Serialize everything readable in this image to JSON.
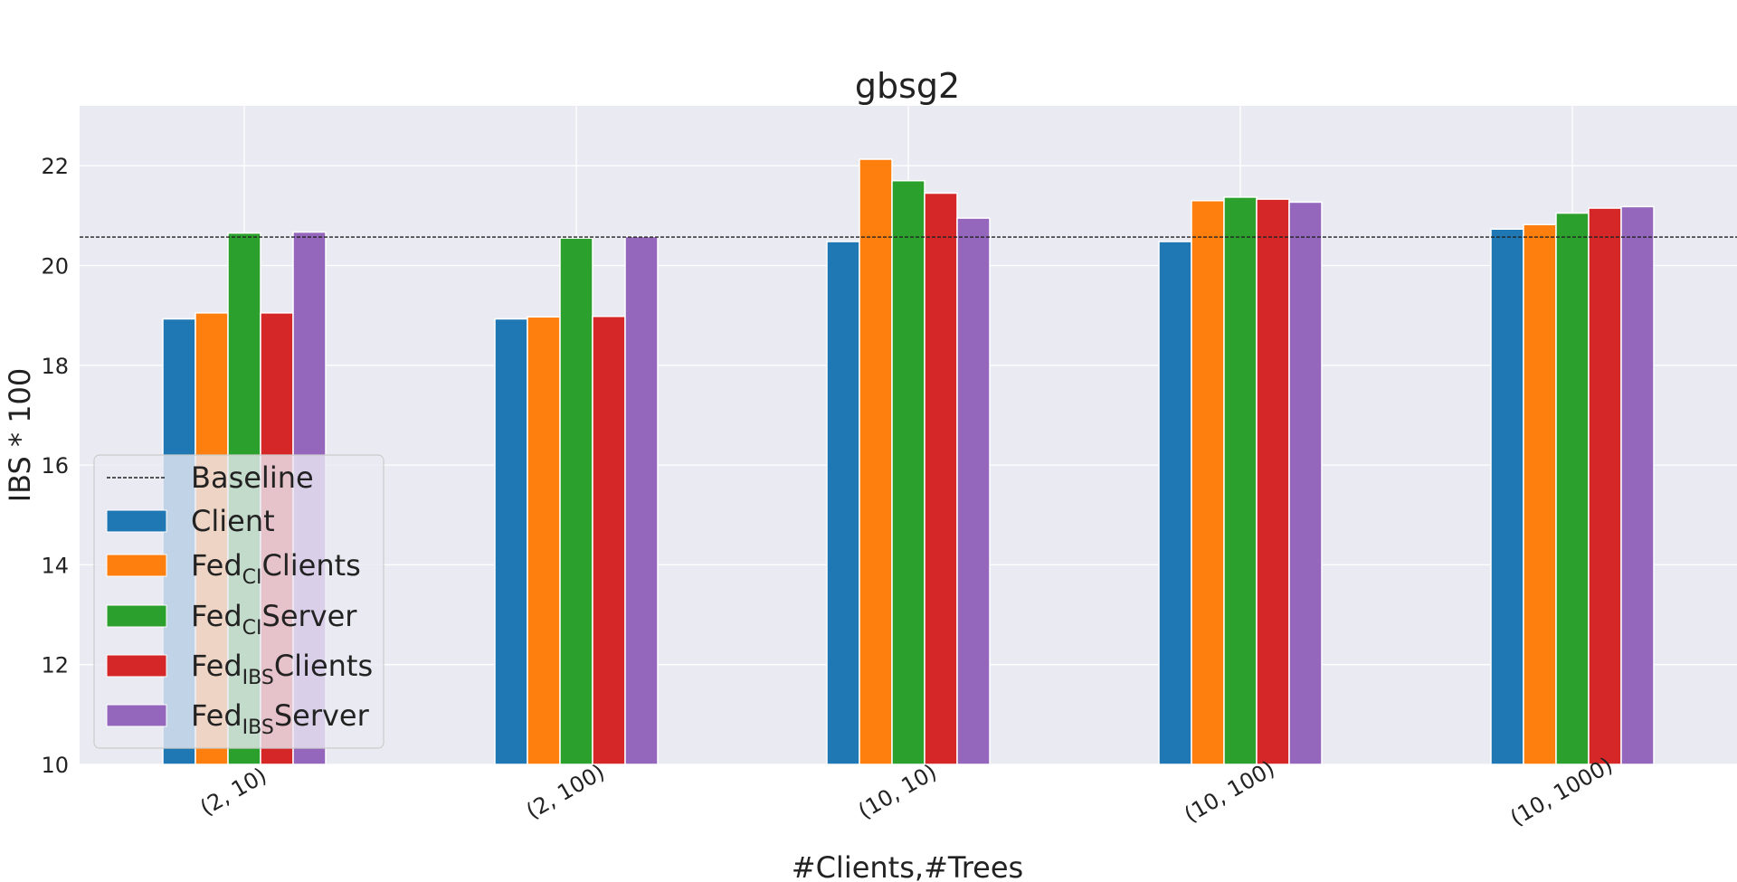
{
  "chart_data": {
    "type": "bar",
    "title": "gbsg2",
    "xlabel": "#Clients,#Trees",
    "ylabel": "IBS * 100",
    "ylim": [
      10,
      23.2
    ],
    "yticks": [
      10,
      12,
      14,
      16,
      18,
      20,
      22
    ],
    "grid": true,
    "legend_position": "lower-left",
    "categories": [
      "(2, 10)",
      "(2, 100)",
      "(10, 10)",
      "(10, 100)",
      "(10, 1000)"
    ],
    "baseline": {
      "name": "Baseline",
      "value": 20.57,
      "color": "#222222"
    },
    "series": [
      {
        "name": "Client",
        "name_main": "Client",
        "name_sub": "",
        "name_tail": "",
        "color": "#1f77b4",
        "values": [
          18.93,
          18.93,
          20.48,
          20.48,
          20.73
        ]
      },
      {
        "name": "FedCIClients",
        "name_main": "Fed",
        "name_sub": "CI",
        "name_tail": "Clients",
        "color": "#ff7f0e",
        "values": [
          19.05,
          18.97,
          22.13,
          21.3,
          20.82
        ]
      },
      {
        "name": "FedCIServer",
        "name_main": "Fed",
        "name_sub": "CI",
        "name_tail": "Server",
        "color": "#2ca02c",
        "values": [
          20.65,
          20.55,
          21.7,
          21.37,
          21.05
        ]
      },
      {
        "name": "FedIBSClients",
        "name_main": "Fed",
        "name_sub": "IBS",
        "name_tail": "Clients",
        "color": "#d62728",
        "values": [
          19.05,
          18.98,
          21.45,
          21.33,
          21.15
        ]
      },
      {
        "name": "FedIBSServer",
        "name_main": "Fed",
        "name_sub": "IBS",
        "name_tail": "Server",
        "color": "#9467bd",
        "values": [
          20.67,
          20.58,
          20.95,
          21.27,
          21.18
        ]
      }
    ]
  },
  "colors": {
    "plot_background": "#eaeaf2",
    "grid": "#ffffff",
    "text": "#222222"
  }
}
